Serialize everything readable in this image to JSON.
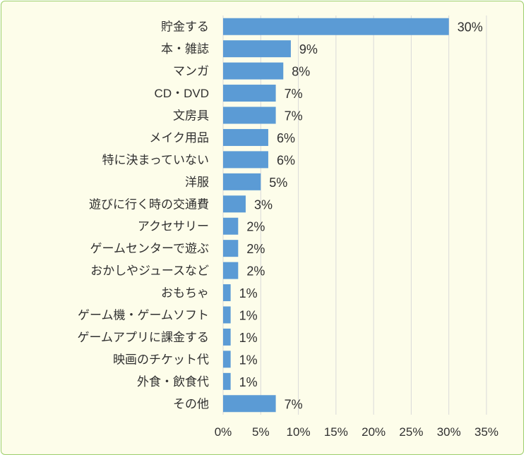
{
  "chart_data": {
    "type": "bar",
    "orientation": "horizontal",
    "categories": [
      "貯金する",
      "本・雑誌",
      "マンガ",
      "CD・DVD",
      "文房具",
      "メイク用品",
      "特に決まっていない",
      "洋服",
      "遊びに行く時の交通費",
      "アクセサリー",
      "ゲームセンターで遊ぶ",
      "おかしやジュースなど",
      "おもちゃ",
      "ゲーム機・ゲームソフト",
      "ゲームアプリに課金する",
      "映画のチケット代",
      "外食・飲食代",
      "その他"
    ],
    "values": [
      30,
      9,
      8,
      7,
      7,
      6,
      6,
      5,
      3,
      2,
      2,
      2,
      1,
      1,
      1,
      1,
      1,
      7
    ],
    "data_labels": [
      "30%",
      "9%",
      "8%",
      "7%",
      "7%",
      "6%",
      "6%",
      "5%",
      "3%",
      "2%",
      "2%",
      "2%",
      "1%",
      "1%",
      "1%",
      "1%",
      "1%",
      "7%"
    ],
    "x_ticks": [
      "0%",
      "5%",
      "10%",
      "15%",
      "20%",
      "25%",
      "30%",
      "35%"
    ],
    "xlim": [
      0,
      35
    ],
    "grid": "vertical",
    "bar_color": "#5b9bd5",
    "grid_color": "#d9d9d9",
    "background_color": "#fdfdea",
    "border_color": "#9cce6a"
  }
}
